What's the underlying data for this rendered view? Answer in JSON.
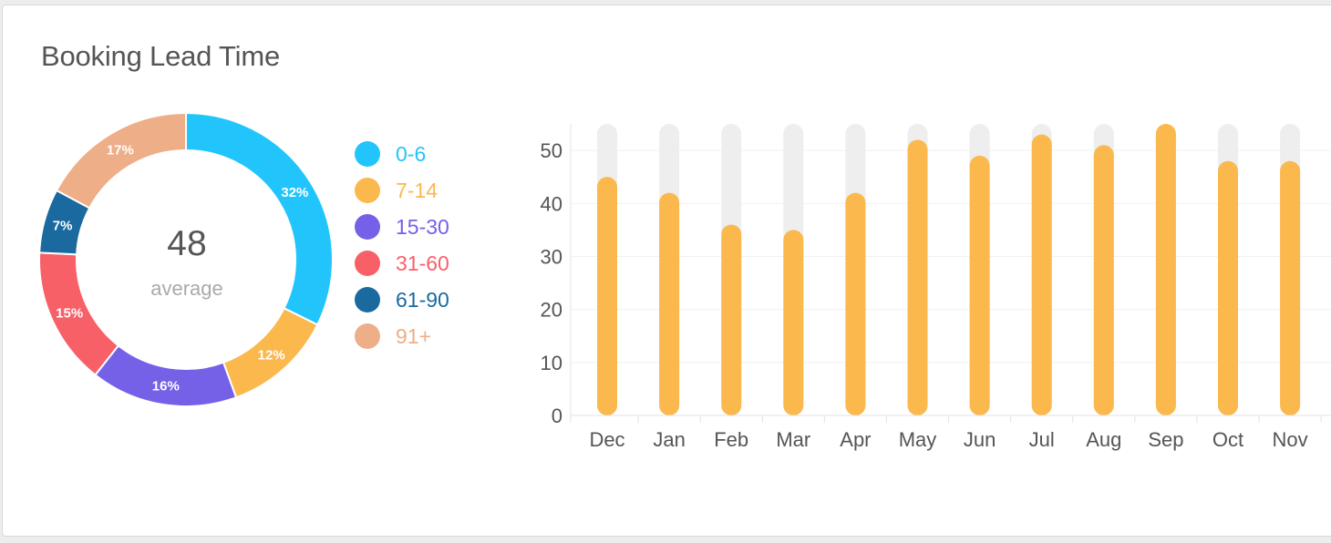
{
  "card": {
    "title": "Booking Lead Time"
  },
  "summary": {
    "value": "48",
    "label": "average"
  },
  "chart_data": [
    {
      "type": "pie",
      "variant": "donut",
      "slices": [
        {
          "label": "0-6",
          "value": 32,
          "display": "32%",
          "color": "#22c5fb"
        },
        {
          "label": "7-14",
          "value": 12,
          "display": "12%",
          "color": "#fbb84d"
        },
        {
          "label": "15-30",
          "value": 16,
          "display": "16%",
          "color": "#7461e8"
        },
        {
          "label": "31-60",
          "value": 15,
          "display": "15%",
          "color": "#f86068"
        },
        {
          "label": "61-90",
          "value": 7,
          "display": "7%",
          "color": "#1a6aa0"
        },
        {
          "label": "91+",
          "value": 17,
          "display": "17%",
          "color": "#edae88"
        }
      ],
      "center_text": "48",
      "center_subtext": "average",
      "legend_position": "right"
    },
    {
      "type": "bar",
      "categories": [
        "Dec",
        "Jan",
        "Feb",
        "Mar",
        "Apr",
        "May",
        "Jun",
        "Jul",
        "Aug",
        "Sep",
        "Oct",
        "Nov"
      ],
      "series": [
        {
          "values": [
            45,
            42,
            36,
            35,
            42,
            52,
            49,
            53,
            51,
            55,
            48,
            48
          ],
          "color": "#fbb84d"
        }
      ],
      "track_max": 55,
      "track_color": "#eeeeee",
      "ylim": [
        0,
        55
      ],
      "yticks": [
        0,
        10,
        20,
        30,
        40,
        50
      ],
      "grid": true,
      "xlabel": "",
      "ylabel": ""
    }
  ]
}
